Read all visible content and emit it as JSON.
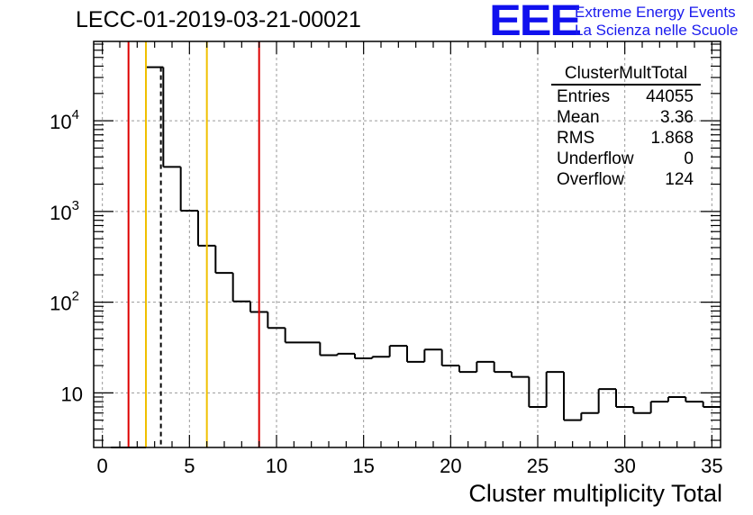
{
  "chart_data": {
    "type": "histogram",
    "title": "LECC-01-2019-03-21-00021",
    "xlabel": "Cluster multiplicity Total",
    "ylabel": "",
    "xlim": [
      -0.5,
      35.5
    ],
    "ylim": [
      2.5,
      75000
    ],
    "yscale": "log",
    "grid": true,
    "bins": [
      {
        "low": 0.5,
        "high": 1.5,
        "value": 0
      },
      {
        "low": 1.5,
        "high": 2.5,
        "value": 0
      },
      {
        "low": 2.5,
        "high": 3.5,
        "value": 39000
      },
      {
        "low": 3.5,
        "high": 4.5,
        "value": 3100
      },
      {
        "low": 4.5,
        "high": 5.5,
        "value": 1020
      },
      {
        "low": 5.5,
        "high": 6.5,
        "value": 420
      },
      {
        "low": 6.5,
        "high": 7.5,
        "value": 210
      },
      {
        "low": 7.5,
        "high": 8.5,
        "value": 102
      },
      {
        "low": 8.5,
        "high": 9.5,
        "value": 78
      },
      {
        "low": 9.5,
        "high": 10.5,
        "value": 52
      },
      {
        "low": 10.5,
        "high": 11.5,
        "value": 36
      },
      {
        "low": 11.5,
        "high": 12.5,
        "value": 36
      },
      {
        "low": 12.5,
        "high": 13.5,
        "value": 26
      },
      {
        "low": 13.5,
        "high": 14.5,
        "value": 27
      },
      {
        "low": 14.5,
        "high": 15.5,
        "value": 24
      },
      {
        "low": 15.5,
        "high": 16.5,
        "value": 25
      },
      {
        "low": 16.5,
        "high": 17.5,
        "value": 33
      },
      {
        "low": 17.5,
        "high": 18.5,
        "value": 22
      },
      {
        "low": 18.5,
        "high": 19.5,
        "value": 30
      },
      {
        "low": 19.5,
        "high": 20.5,
        "value": 20
      },
      {
        "low": 20.5,
        "high": 21.5,
        "value": 17
      },
      {
        "low": 21.5,
        "high": 22.5,
        "value": 22
      },
      {
        "low": 22.5,
        "high": 23.5,
        "value": 17
      },
      {
        "low": 23.5,
        "high": 24.5,
        "value": 15
      },
      {
        "low": 24.5,
        "high": 25.5,
        "value": 7
      },
      {
        "low": 25.5,
        "high": 26.5,
        "value": 17
      },
      {
        "low": 26.5,
        "high": 27.5,
        "value": 5
      },
      {
        "low": 27.5,
        "high": 28.5,
        "value": 6
      },
      {
        "low": 28.5,
        "high": 29.5,
        "value": 11
      },
      {
        "low": 29.5,
        "high": 30.5,
        "value": 7
      },
      {
        "low": 30.5,
        "high": 31.5,
        "value": 6
      },
      {
        "low": 31.5,
        "high": 32.5,
        "value": 8
      },
      {
        "low": 32.5,
        "high": 33.5,
        "value": 9
      },
      {
        "low": 33.5,
        "high": 34.5,
        "value": 8
      },
      {
        "low": 34.5,
        "high": 35.5,
        "value": 7
      }
    ],
    "x_ticks": [
      "0",
      "5",
      "10",
      "15",
      "20",
      "25",
      "30",
      "35"
    ],
    "y_ticks": [
      {
        "value": 10,
        "base": "10",
        "exp": ""
      },
      {
        "value": 100,
        "base": "10",
        "exp": "2"
      },
      {
        "value": 1000,
        "base": "10",
        "exp": "3"
      },
      {
        "value": 10000,
        "base": "10",
        "exp": "4"
      }
    ],
    "vertical_lines": [
      {
        "x": 1.5,
        "color": "#dd0000",
        "style": "solid"
      },
      {
        "x": 2.5,
        "color": "#f0c000",
        "style": "solid"
      },
      {
        "x": 3.36,
        "color": "#000000",
        "style": "dashed"
      },
      {
        "x": 6.0,
        "color": "#f0c000",
        "style": "solid"
      },
      {
        "x": 9.0,
        "color": "#dd0000",
        "style": "solid"
      }
    ]
  },
  "logo": {
    "text": "EEE",
    "line1": "Extreme Energy Events",
    "line2": "La Scienza nelle Scuole",
    "color": "#1010ee"
  },
  "stats_box": {
    "title": "ClusterMultTotal",
    "rows": [
      {
        "label": "Entries",
        "value": "44055"
      },
      {
        "label": "Mean",
        "value": "3.36"
      },
      {
        "label": "RMS",
        "value": "1.868"
      },
      {
        "label": "Underflow",
        "value": "0"
      },
      {
        "label": "Overflow",
        "value": "124"
      }
    ]
  }
}
